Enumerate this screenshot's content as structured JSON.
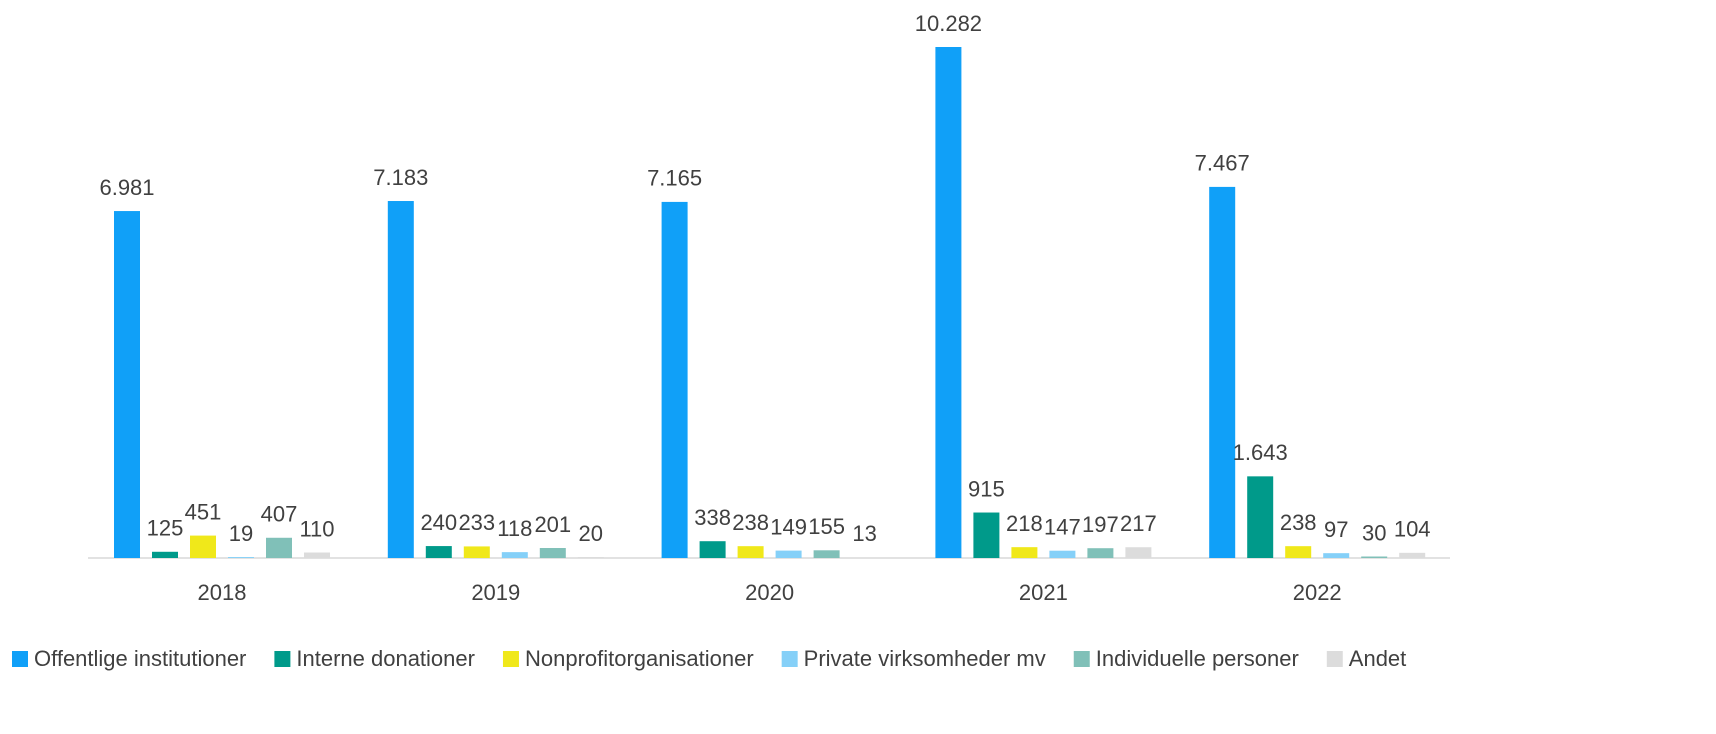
{
  "chart_data": {
    "type": "bar",
    "categories": [
      "2018",
      "2019",
      "2020",
      "2021",
      "2022"
    ],
    "series": [
      {
        "name": "Offentlige institutioner",
        "color": "#10a0f8",
        "values": [
          6981,
          7183,
          7165,
          10282,
          7467
        ],
        "value_labels": [
          "6.981",
          "7.183",
          "7.165",
          "10.282",
          "7.467"
        ]
      },
      {
        "name": "Interne donationer",
        "color": "#009a8a",
        "values": [
          125,
          240,
          338,
          915,
          1643
        ],
        "value_labels": [
          "125",
          "240",
          "338",
          "915",
          "1.643"
        ]
      },
      {
        "name": "Nonprofitorganisationer",
        "color": "#f0e81a",
        "values": [
          451,
          233,
          238,
          218,
          238
        ],
        "value_labels": [
          "451",
          "233",
          "238",
          "218",
          "238"
        ]
      },
      {
        "name": "Private virksomheder mv",
        "color": "#85d0f8",
        "values": [
          19,
          118,
          149,
          147,
          97
        ],
        "value_labels": [
          "19",
          "118",
          "149",
          "147",
          "97"
        ]
      },
      {
        "name": "Individuelle personer",
        "color": "#80c0b8",
        "values": [
          407,
          201,
          155,
          197,
          30
        ],
        "value_labels": [
          "407",
          "201",
          "155",
          "197",
          "30"
        ]
      },
      {
        "name": "Andet",
        "color": "#dcdcdc",
        "values": [
          110,
          20,
          13,
          217,
          104
        ],
        "value_labels": [
          "110",
          "20",
          "13",
          "217",
          "104"
        ]
      }
    ],
    "legend": "bottom"
  }
}
